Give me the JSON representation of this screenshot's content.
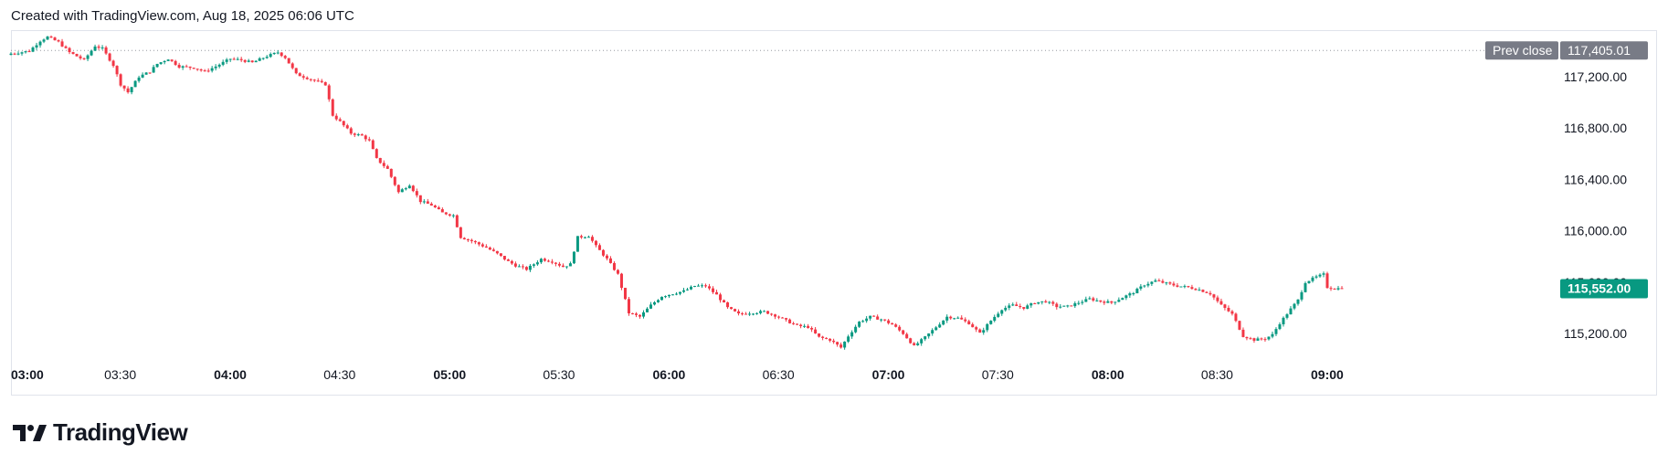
{
  "header": {
    "created_text": "Created with TradingView.com, Aug 18, 2025 06:06 UTC"
  },
  "brand": {
    "logo_text": "TradingView",
    "logo_icon": "tradingview-logo-icon"
  },
  "colors": {
    "up": "#089981",
    "down": "#f23645",
    "grid_line": "#9598a1",
    "prev_close_bg": "#787b86",
    "last_price_bg": "#089981"
  },
  "chart_data": {
    "type": "candlestick",
    "symbol_interval_minutes": 1,
    "x_ticks": [
      {
        "label": "03:00",
        "bold": true
      },
      {
        "label": "03:30",
        "bold": false
      },
      {
        "label": "04:00",
        "bold": true
      },
      {
        "label": "04:30",
        "bold": false
      },
      {
        "label": "05:00",
        "bold": true
      },
      {
        "label": "05:30",
        "bold": false
      },
      {
        "label": "06:00",
        "bold": true
      },
      {
        "label": "06:30",
        "bold": false
      },
      {
        "label": "07:00",
        "bold": true
      },
      {
        "label": "07:30",
        "bold": false
      },
      {
        "label": "08:00",
        "bold": true
      },
      {
        "label": "08:30",
        "bold": false
      },
      {
        "label": "09:00",
        "bold": true
      }
    ],
    "x_range_minutes_from_0300": [
      0,
      364
    ],
    "y_ticks": [
      "117,200.00",
      "116,800.00",
      "116,400.00",
      "116,000.00",
      "115,600.00",
      "115,200.00"
    ],
    "y_tick_values": [
      117200,
      116800,
      116400,
      116000,
      115600,
      115200
    ],
    "y_range": [
      115000,
      117600
    ],
    "prev_close": {
      "label": "Prev close",
      "value_text": "117,405.01",
      "value": 117405.01
    },
    "last_price": {
      "value_text": "115,552.00",
      "value": 115552.0
    },
    "close_path": [
      [
        0,
        117380
      ],
      [
        5,
        117400
      ],
      [
        8,
        117480
      ],
      [
        10,
        117510
      ],
      [
        13,
        117470
      ],
      [
        16,
        117390
      ],
      [
        20,
        117330
      ],
      [
        23,
        117440
      ],
      [
        25,
        117420
      ],
      [
        28,
        117290
      ],
      [
        30,
        117140
      ],
      [
        32,
        117080
      ],
      [
        35,
        117200
      ],
      [
        38,
        117240
      ],
      [
        40,
        117300
      ],
      [
        43,
        117340
      ],
      [
        46,
        117280
      ],
      [
        50,
        117270
      ],
      [
        53,
        117240
      ],
      [
        56,
        117280
      ],
      [
        60,
        117340
      ],
      [
        63,
        117330
      ],
      [
        66,
        117310
      ],
      [
        70,
        117360
      ],
      [
        73,
        117390
      ],
      [
        75,
        117350
      ],
      [
        78,
        117220
      ],
      [
        81,
        117190
      ],
      [
        84,
        117160
      ],
      [
        86,
        117140
      ],
      [
        88,
        116900
      ],
      [
        90,
        116850
      ],
      [
        93,
        116760
      ],
      [
        96,
        116740
      ],
      [
        98,
        116700
      ],
      [
        100,
        116560
      ],
      [
        103,
        116480
      ],
      [
        106,
        116300
      ],
      [
        109,
        116360
      ],
      [
        112,
        116230
      ],
      [
        115,
        116200
      ],
      [
        118,
        116140
      ],
      [
        121,
        116120
      ],
      [
        123,
        115950
      ],
      [
        126,
        115920
      ],
      [
        130,
        115870
      ],
      [
        133,
        115820
      ],
      [
        136,
        115760
      ],
      [
        138,
        115730
      ],
      [
        141,
        115700
      ],
      [
        145,
        115780
      ],
      [
        148,
        115760
      ],
      [
        151,
        115720
      ],
      [
        153,
        115740
      ],
      [
        155,
        115950
      ],
      [
        158,
        115960
      ],
      [
        160,
        115880
      ],
      [
        163,
        115780
      ],
      [
        166,
        115660
      ],
      [
        169,
        115360
      ],
      [
        172,
        115330
      ],
      [
        175,
        115420
      ],
      [
        178,
        115490
      ],
      [
        181,
        115510
      ],
      [
        184,
        115530
      ],
      [
        187,
        115570
      ],
      [
        190,
        115570
      ],
      [
        193,
        115500
      ],
      [
        196,
        115400
      ],
      [
        199,
        115350
      ],
      [
        202,
        115360
      ],
      [
        206,
        115370
      ],
      [
        209,
        115340
      ],
      [
        212,
        115300
      ],
      [
        215,
        115260
      ],
      [
        218,
        115250
      ],
      [
        221,
        115170
      ],
      [
        224,
        115150
      ],
      [
        227,
        115090
      ],
      [
        229,
        115180
      ],
      [
        232,
        115290
      ],
      [
        235,
        115330
      ],
      [
        238,
        115310
      ],
      [
        241,
        115270
      ],
      [
        244,
        115200
      ],
      [
        247,
        115100
      ],
      [
        250,
        115170
      ],
      [
        253,
        115250
      ],
      [
        256,
        115330
      ],
      [
        259,
        115320
      ],
      [
        262,
        115280
      ],
      [
        265,
        115200
      ],
      [
        268,
        115300
      ],
      [
        271,
        115390
      ],
      [
        274,
        115420
      ],
      [
        277,
        115400
      ],
      [
        280,
        115440
      ],
      [
        283,
        115450
      ],
      [
        286,
        115410
      ],
      [
        289,
        115410
      ],
      [
        292,
        115440
      ],
      [
        295,
        115470
      ],
      [
        298,
        115450
      ],
      [
        301,
        115440
      ],
      [
        304,
        115480
      ],
      [
        307,
        115520
      ],
      [
        310,
        115580
      ],
      [
        313,
        115610
      ],
      [
        316,
        115590
      ],
      [
        319,
        115570
      ],
      [
        322,
        115560
      ],
      [
        325,
        115540
      ],
      [
        328,
        115510
      ],
      [
        331,
        115420
      ],
      [
        334,
        115350
      ],
      [
        337,
        115180
      ],
      [
        340,
        115150
      ],
      [
        343,
        115160
      ],
      [
        345,
        115190
      ],
      [
        347,
        115280
      ],
      [
        350,
        115390
      ],
      [
        352,
        115460
      ],
      [
        354,
        115600
      ],
      [
        357,
        115640
      ],
      [
        359,
        115660
      ],
      [
        360,
        115560
      ],
      [
        362,
        115550
      ],
      [
        364,
        115552
      ]
    ]
  }
}
